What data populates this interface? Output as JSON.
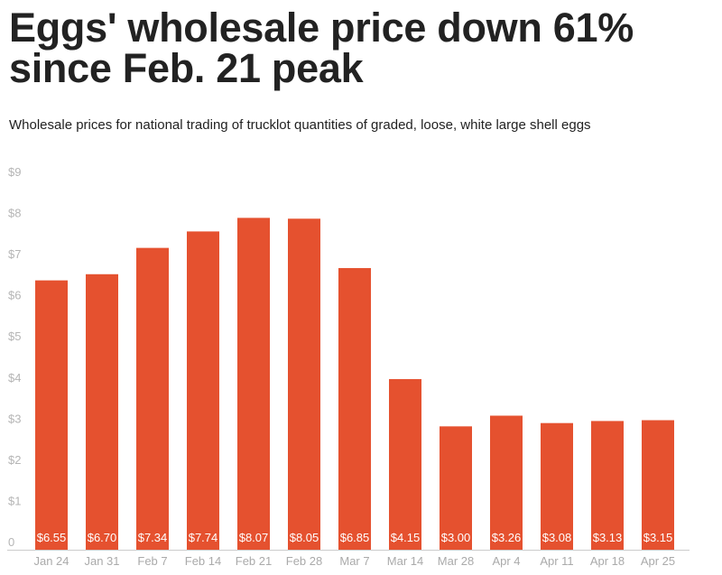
{
  "chart_data": {
    "type": "bar",
    "title": "Eggs' wholesale price down 61% since Feb. 21 peak",
    "subtitle": "Wholesale prices for national trading of trucklot quantities of graded, loose, white large shell eggs",
    "categories": [
      "Jan 24",
      "Jan 31",
      "Feb 7",
      "Feb 14",
      "Feb 21",
      "Feb 28",
      "Mar 7",
      "Mar 14",
      "Mar 28",
      "Apr 4",
      "Apr 11",
      "Apr 18",
      "Apr 25"
    ],
    "values": [
      6.55,
      6.7,
      7.34,
      7.74,
      8.07,
      8.05,
      6.85,
      4.15,
      3.0,
      3.26,
      3.08,
      3.13,
      3.15
    ],
    "data_labels": [
      "$6.55",
      "$6.70",
      "$7.34",
      "$7.74",
      "$8.07",
      "$8.05",
      "$6.85",
      "$4.15",
      "$3.00",
      "$3.26",
      "$3.08",
      "$3.13",
      "$3.15"
    ],
    "y_ticks": [
      "0",
      "$1",
      "$2",
      "$3",
      "$4",
      "$5",
      "$6",
      "$7",
      "$8",
      "$9"
    ],
    "ylim": [
      0,
      9
    ],
    "xlabel": "",
    "ylabel": "",
    "grid": false,
    "bar_color": "#e5512f",
    "axis_color": "#cccccc"
  }
}
